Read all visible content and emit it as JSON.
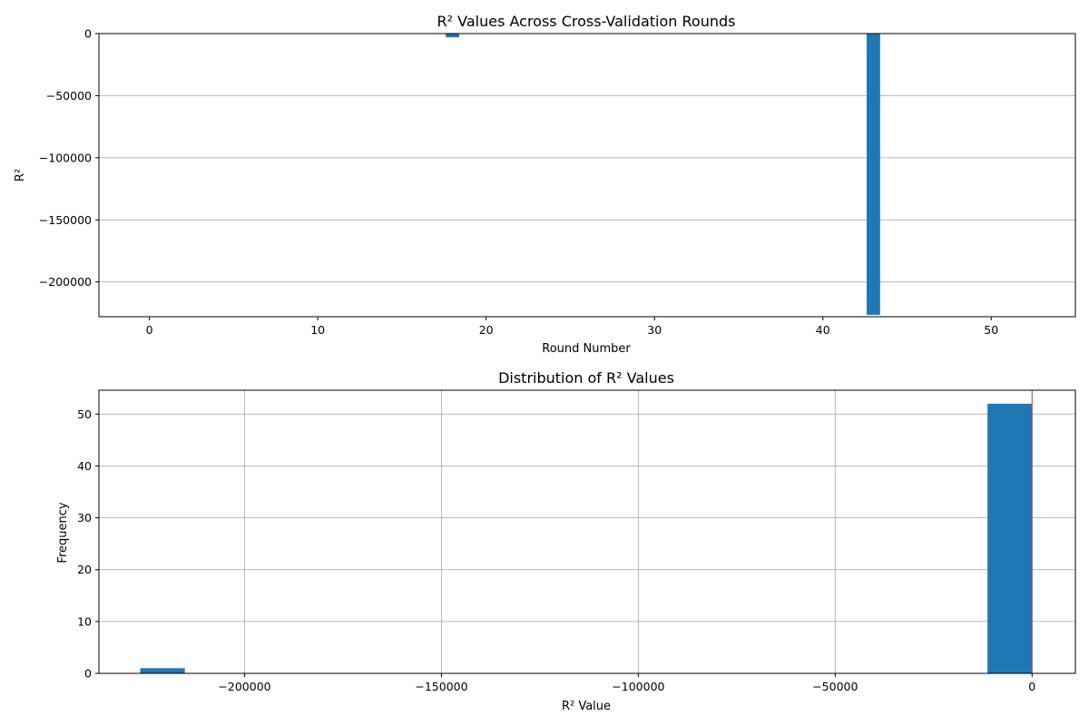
{
  "colors": {
    "bar": "#1f77b4",
    "refline": "#d62728",
    "grid": "#b0b0b0"
  },
  "chart_data": [
    {
      "type": "bar",
      "title": "R² Values Across Cross-Validation Rounds",
      "xlabel": "Round Number",
      "ylabel": "R²",
      "xlim": [
        -3,
        55
      ],
      "ylim": [
        -228000,
        0
      ],
      "xticks": [
        0,
        10,
        20,
        30,
        40,
        50
      ],
      "xtick_labels": [
        "0",
        "10",
        "20",
        "30",
        "40",
        "50"
      ],
      "yticks": [
        0,
        -50000,
        -100000,
        -150000,
        -200000
      ],
      "ytick_labels": [
        "0",
        "−50000",
        "−100000",
        "−150000",
        "−200000"
      ],
      "grid": "y",
      "x": [
        0,
        1,
        2,
        3,
        4,
        5,
        6,
        7,
        8,
        9,
        10,
        11,
        12,
        13,
        14,
        15,
        16,
        17,
        18,
        19,
        20,
        21,
        22,
        23,
        24,
        25,
        26,
        27,
        28,
        29,
        30,
        31,
        32,
        33,
        34,
        35,
        36,
        37,
        38,
        39,
        40,
        41,
        42,
        43,
        44,
        45,
        46,
        47,
        48,
        49,
        50,
        51,
        52
      ],
      "values": [
        0,
        0,
        0,
        0,
        0,
        0,
        0,
        0,
        0,
        0,
        0,
        0,
        0,
        0,
        0,
        0,
        0,
        0,
        -3000,
        0,
        0,
        0,
        0,
        0,
        0,
        0,
        0,
        0,
        0,
        0,
        0,
        0,
        0,
        0,
        0,
        0,
        0,
        0,
        0,
        0,
        0,
        0,
        0,
        -226500,
        0,
        0,
        0,
        0,
        0,
        0,
        0,
        0,
        0
      ]
    },
    {
      "type": "bar",
      "title": "Distribution of R² Values",
      "xlabel": "R² Value",
      "ylabel": "Frequency",
      "xlim": [
        -237000,
        11000
      ],
      "ylim": [
        0,
        54.6
      ],
      "xticks": [
        -200000,
        -150000,
        -100000,
        -50000,
        0
      ],
      "xtick_labels": [
        "−200000",
        "−150000",
        "−100000",
        "−50000",
        "0"
      ],
      "yticks": [
        0,
        10,
        20,
        30,
        40,
        50
      ],
      "ytick_labels": [
        "0",
        "10",
        "20",
        "30",
        "40",
        "50"
      ],
      "grid": "both",
      "bins": [
        {
          "start": -226500,
          "end": -215175,
          "count": 1
        },
        {
          "start": -11325,
          "end": 0,
          "count": 52
        }
      ],
      "reference_line_x": 0
    }
  ]
}
